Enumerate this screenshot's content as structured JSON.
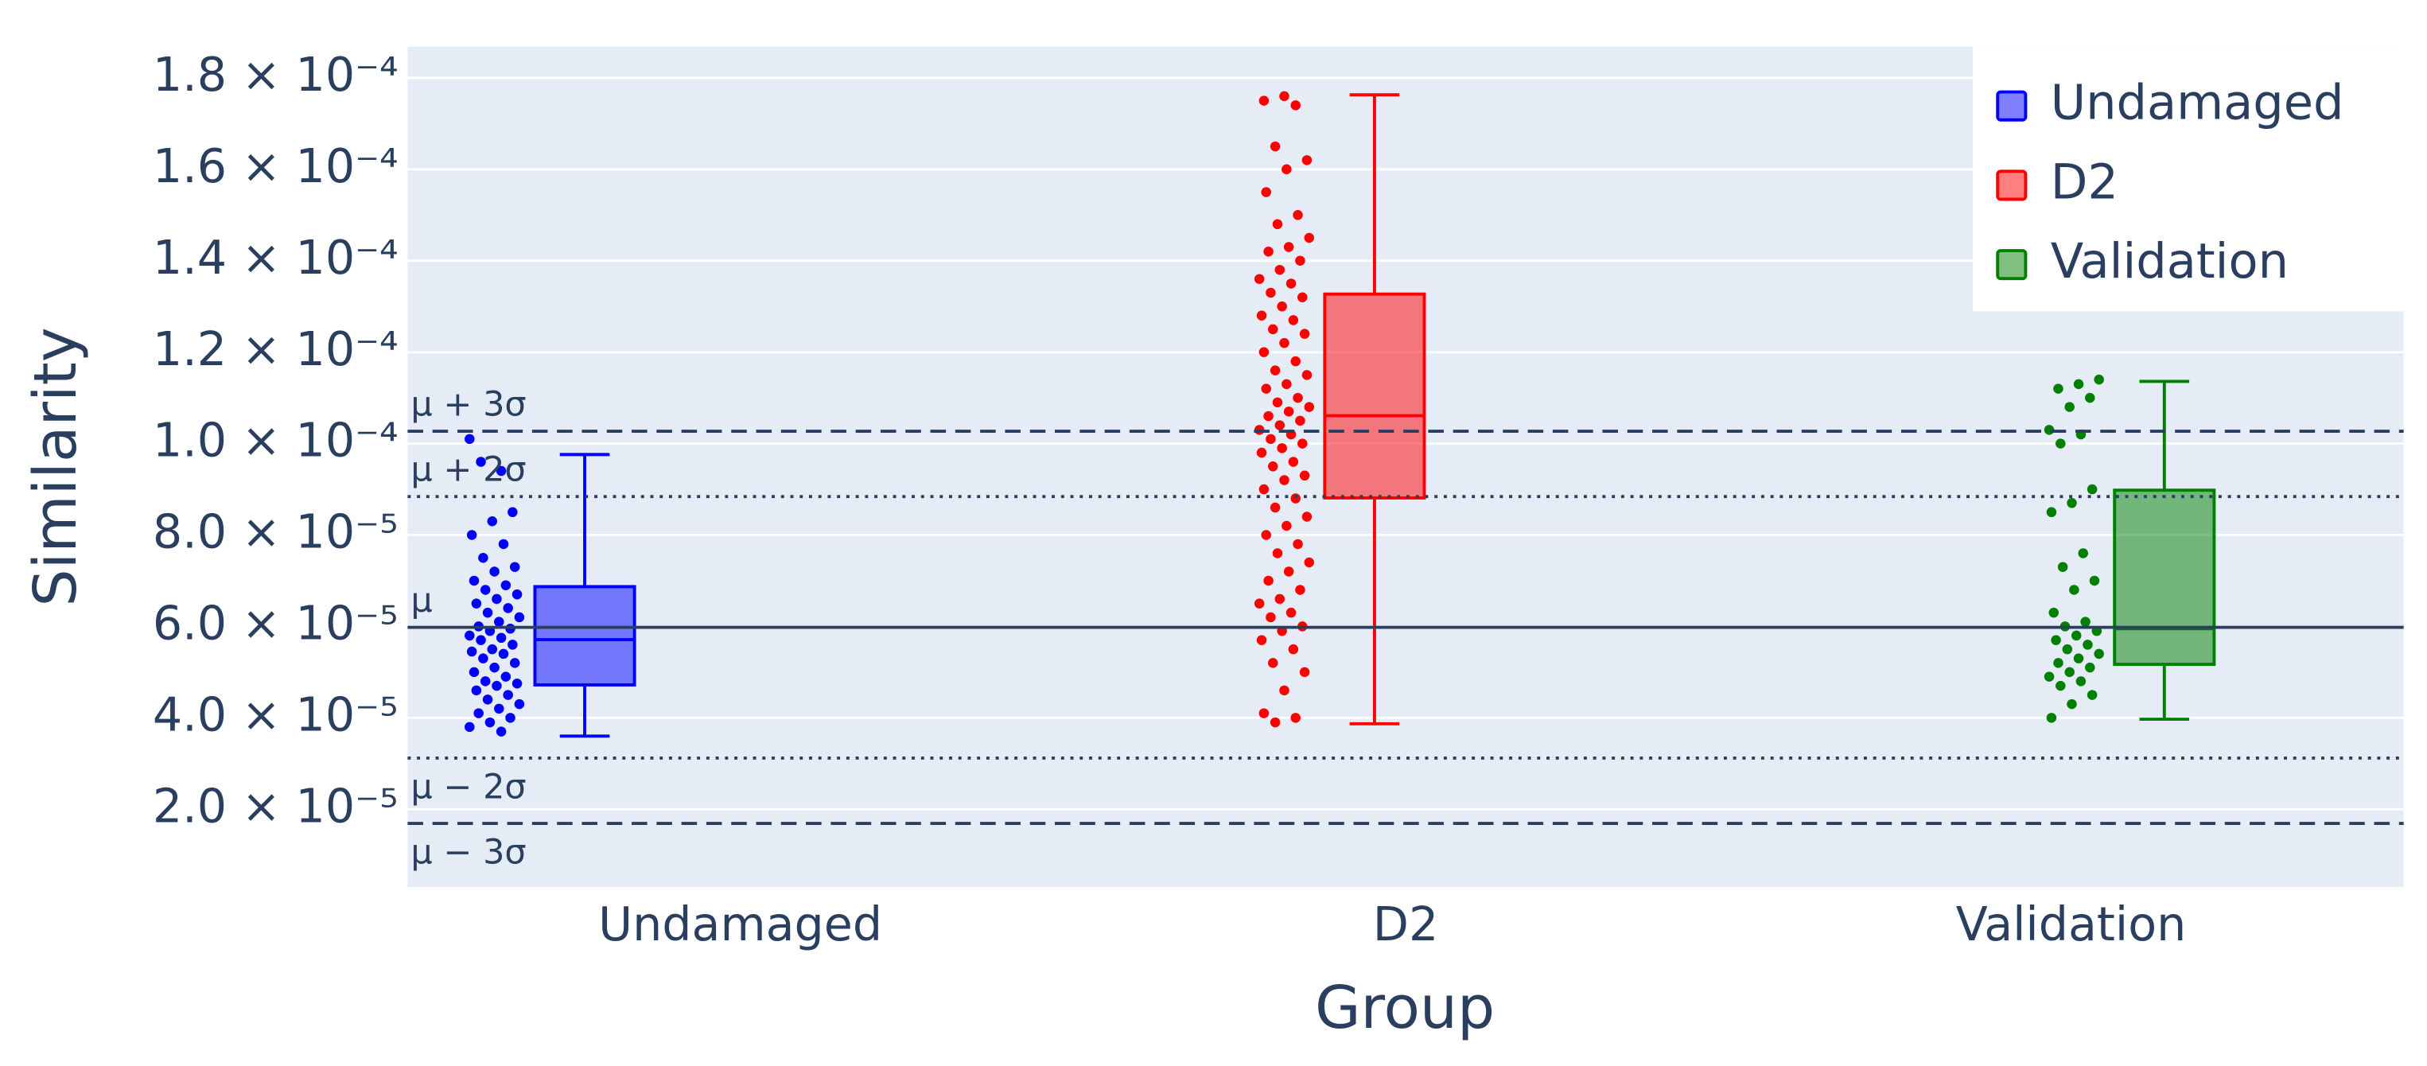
{
  "chart_data": {
    "type": "box",
    "x_label": "Group",
    "y_label": "Similarity",
    "categories": [
      "Undamaged",
      "D2",
      "Validation"
    ],
    "ylim": [
      3e-06,
      0.0001868
    ],
    "yticks": [
      {
        "value": 2e-05,
        "label": "2.0 × 10⁻⁵"
      },
      {
        "value": 4e-05,
        "label": "4.0 × 10⁻⁵"
      },
      {
        "value": 6e-05,
        "label": "6.0 × 10⁻⁵"
      },
      {
        "value": 8e-05,
        "label": "8.0 × 10⁻⁵"
      },
      {
        "value": 0.0001,
        "label": "1.0 × 10⁻⁴"
      },
      {
        "value": 0.00012,
        "label": "1.2 × 10⁻⁴"
      },
      {
        "value": 0.00014,
        "label": "1.4 × 10⁻⁴"
      },
      {
        "value": 0.00016,
        "label": "1.6 × 10⁻⁴"
      },
      {
        "value": 0.00018,
        "label": "1.8 × 10⁻⁴"
      }
    ],
    "grid": true,
    "legend_position": "top-right",
    "reference_lines": [
      {
        "label": "μ + 3σ",
        "value": 0.0001027,
        "dash": "dashed"
      },
      {
        "label": "μ + 2σ",
        "value": 8.84e-05,
        "dash": "dotted"
      },
      {
        "label": "μ",
        "value": 5.98e-05,
        "dash": "solid"
      },
      {
        "label": "μ − 2σ",
        "value": 3.12e-05,
        "dash": "dotted"
      },
      {
        "label": "μ − 3σ",
        "value": 1.69e-05,
        "dash": "dashed"
      }
    ],
    "series": [
      {
        "name": "Undamaged",
        "color": "#0000ff",
        "lowerfence": 3.6e-05,
        "q1": 4.72e-05,
        "median": 5.71e-05,
        "q3": 6.87e-05,
        "upperfence": 9.76e-05,
        "values": [
          0.000101,
          9.4e-05,
          9.6e-05,
          8.5e-05,
          8.3e-05,
          8e-05,
          7.8e-05,
          7.5e-05,
          7.3e-05,
          7.2e-05,
          7e-05,
          6.9e-05,
          6.8e-05,
          6.7e-05,
          6.6e-05,
          6.5e-05,
          6.4e-05,
          6.3e-05,
          6.2e-05,
          6.1e-05,
          6e-05,
          5.95e-05,
          5.9e-05,
          5.8e-05,
          5.75e-05,
          5.7e-05,
          5.6e-05,
          5.5e-05,
          5.45e-05,
          5.4e-05,
          5.3e-05,
          5.2e-05,
          5.1e-05,
          5e-05,
          4.9e-05,
          4.8e-05,
          4.75e-05,
          4.7e-05,
          4.6e-05,
          4.5e-05,
          4.4e-05,
          4.3e-05,
          4.2e-05,
          4.1e-05,
          4e-05,
          3.9e-05,
          3.8e-05,
          3.7e-05
        ]
      },
      {
        "name": "D2",
        "color": "#ff0000",
        "lowerfence": 3.87e-05,
        "q1": 8.81e-05,
        "median": 0.0001061,
        "q3": 0.0001327,
        "upperfence": 0.0001763,
        "values": [
          0.000176,
          0.000175,
          0.000174,
          0.000165,
          0.000162,
          0.00016,
          0.000155,
          0.00015,
          0.000148,
          0.000145,
          0.000143,
          0.000142,
          0.00014,
          0.000138,
          0.000136,
          0.000135,
          0.000133,
          0.000132,
          0.00013,
          0.000128,
          0.000127,
          0.000125,
          0.000124,
          0.000122,
          0.00012,
          0.000118,
          0.000116,
          0.000115,
          0.000113,
          0.000112,
          0.00011,
          0.000109,
          0.000108,
          0.000107,
          0.000106,
          0.000105,
          0.000104,
          0.000103,
          0.000102,
          0.000101,
          0.0001,
          9.9e-05,
          9.8e-05,
          9.6e-05,
          9.5e-05,
          9.3e-05,
          9.2e-05,
          9e-05,
          8.8e-05,
          8.6e-05,
          8.4e-05,
          8.2e-05,
          8e-05,
          7.8e-05,
          7.6e-05,
          7.4e-05,
          7.2e-05,
          7e-05,
          6.8e-05,
          6.6e-05,
          6.5e-05,
          6.3e-05,
          6.2e-05,
          6e-05,
          5.9e-05,
          5.7e-05,
          5.5e-05,
          5.2e-05,
          5e-05,
          4.6e-05,
          4.1e-05,
          4e-05,
          3.9e-05
        ]
      },
      {
        "name": "Validation",
        "color": "#008000",
        "lowerfence": 3.97e-05,
        "q1": 5.17e-05,
        "median": 5.95e-05,
        "q3": 8.98e-05,
        "upperfence": 0.0001136,
        "values": [
          0.000114,
          0.000113,
          0.000112,
          0.00011,
          0.000108,
          0.000103,
          0.000102,
          0.0001,
          9e-05,
          8.7e-05,
          8.5e-05,
          7.6e-05,
          7.3e-05,
          7e-05,
          6.8e-05,
          6.3e-05,
          6.1e-05,
          6e-05,
          5.9e-05,
          5.8e-05,
          5.7e-05,
          5.6e-05,
          5.5e-05,
          5.4e-05,
          5.3e-05,
          5.2e-05,
          5.1e-05,
          5e-05,
          4.9e-05,
          4.8e-05,
          4.7e-05,
          4.5e-05,
          4.3e-05,
          4e-05
        ]
      }
    ]
  }
}
